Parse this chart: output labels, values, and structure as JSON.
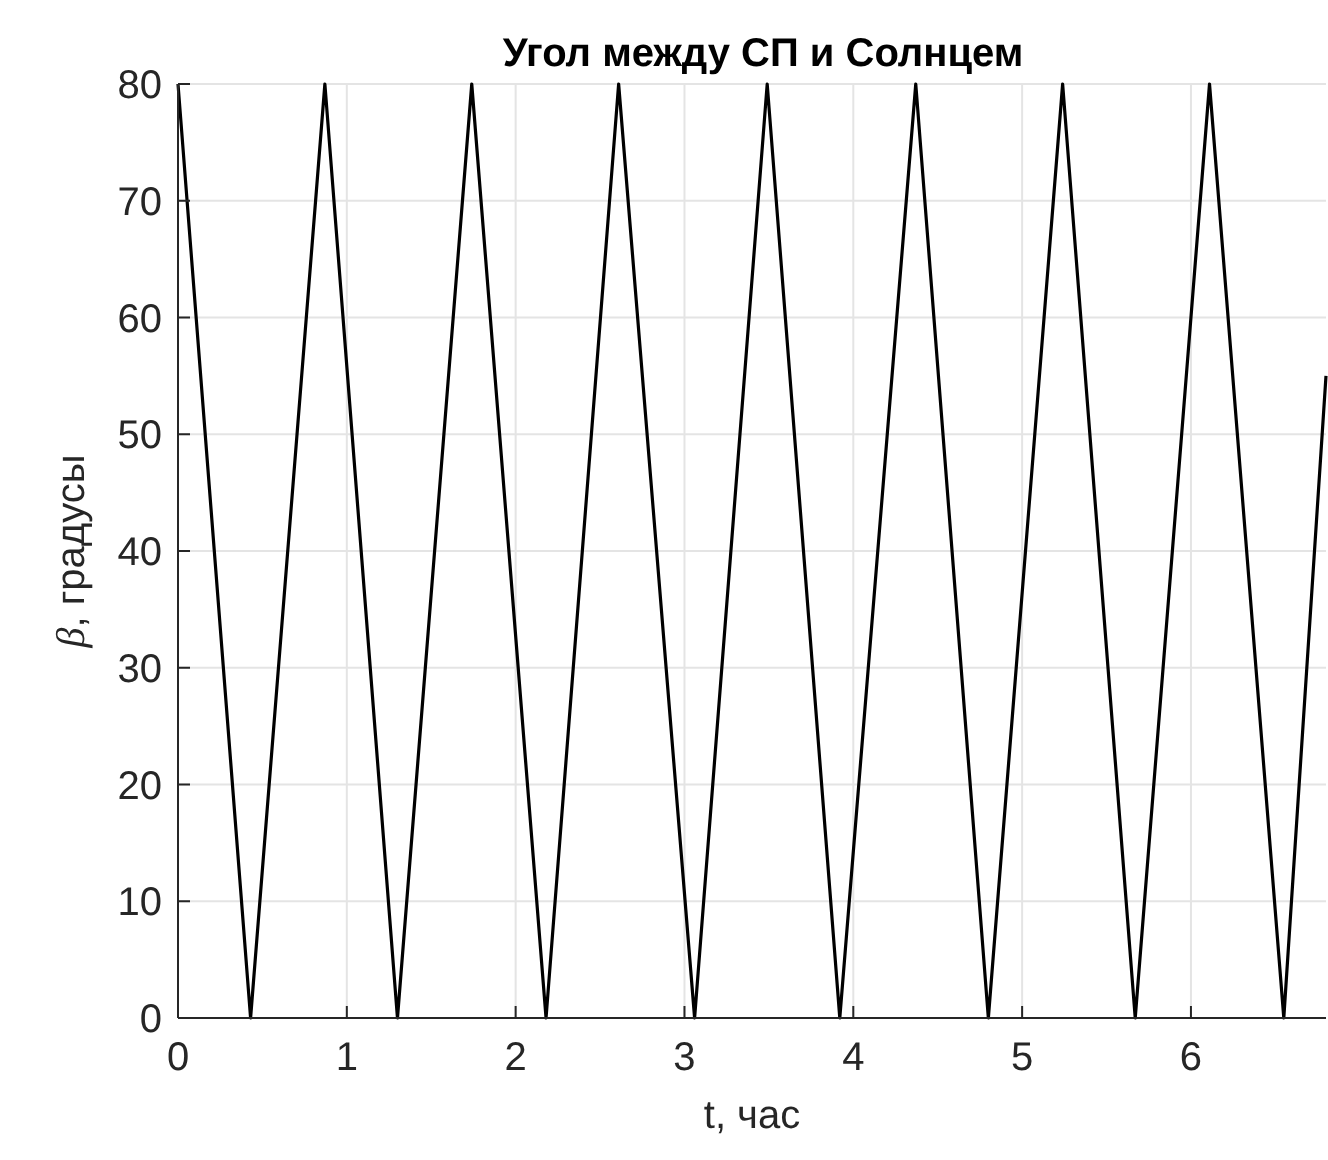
{
  "chart_data": {
    "type": "line",
    "title": "Угол между СП и Солнцем",
    "xlabel": "t, час",
    "ylabel": "β, градусы",
    "x": [
      0,
      0.43,
      0.87,
      1.3,
      1.74,
      2.18,
      2.61,
      3.06,
      3.49,
      3.92,
      4.37,
      4.8,
      5.24,
      5.67,
      6.11,
      6.55,
      6.8
    ],
    "series": [
      {
        "color": "#000000",
        "values": [
          80,
          0,
          80,
          0,
          80,
          0,
          80,
          0,
          80,
          0,
          80,
          0,
          80,
          0,
          80,
          0,
          55
        ]
      }
    ],
    "xlim": [
      0,
      6.8
    ],
    "ylim": [
      0,
      80
    ],
    "xticks": [
      0,
      1,
      2,
      3,
      4,
      5,
      6
    ],
    "yticks": [
      0,
      10,
      20,
      30,
      40,
      50,
      60,
      70,
      80
    ],
    "grid": true
  }
}
